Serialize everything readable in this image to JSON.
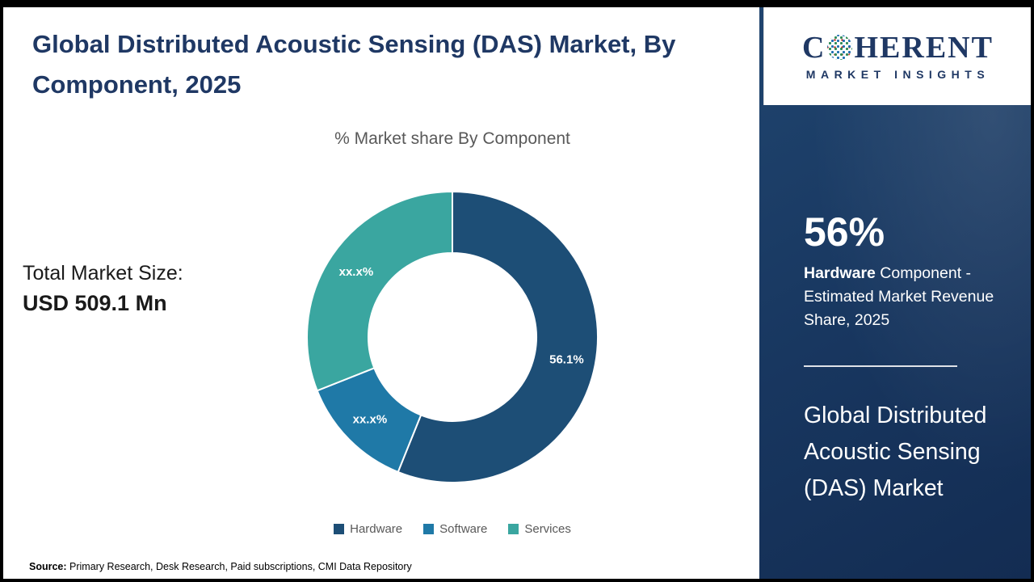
{
  "page": {
    "title": "Global Distributed Acoustic Sensing (DAS) Market, By Component, 2025",
    "source": {
      "label": "Source:",
      "text": " Primary Research, Desk Research, Paid subscriptions, CMI Data Repository"
    }
  },
  "market": {
    "total_label": "Total Market Size:",
    "total_value": "USD 509.1 Mn"
  },
  "chart_data": {
    "type": "pie",
    "donut": true,
    "title": "% Market share By Component",
    "categories": [
      "Hardware",
      "Software",
      "Services"
    ],
    "values": [
      56.1,
      12.9,
      31.0
    ],
    "display_labels": [
      "56.1%",
      "xx.x%",
      "xx.x%"
    ],
    "colors": [
      "#1d4e76",
      "#1f79a7",
      "#3aa6a0"
    ],
    "legend_position": "bottom",
    "label_color": "#ffffff"
  },
  "sidebar": {
    "stat_value": "56%",
    "stat_highlight": "Hardware",
    "stat_text": " Component - Estimated Market Revenue Share, 2025",
    "market_name": "Global Distributed Acoustic Sensing (DAS) Market",
    "logo": {
      "text_before": "C",
      "text_after": "HERENT",
      "globe_icon": "globe-dots-icon",
      "subtitle": "MARKET INSIGHTS"
    },
    "colors": {
      "background_top": "#20456f",
      "background_bottom": "#132c52",
      "text": "#ffffff"
    }
  }
}
